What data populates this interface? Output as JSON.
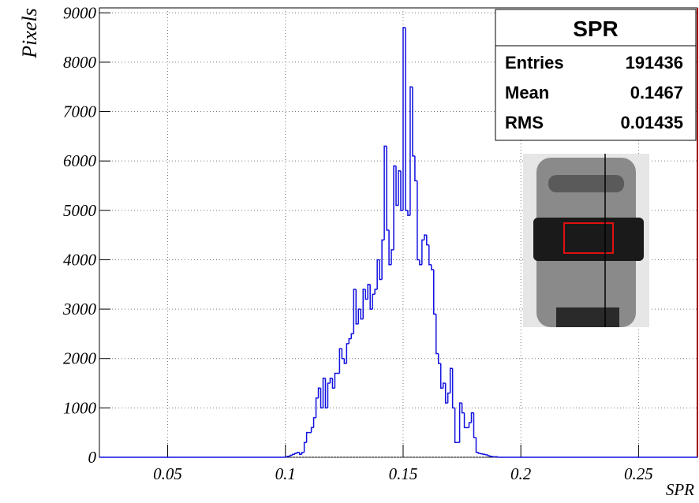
{
  "chart_data": {
    "type": "histogram",
    "x_label": "SPR",
    "y_label": "Pixels",
    "color": "#1010e0",
    "bins": [
      0.1,
      0.101,
      0.102,
      0.103,
      0.104,
      0.105,
      0.106,
      0.107,
      0.108,
      0.109,
      0.11,
      0.111,
      0.112,
      0.113,
      0.114,
      0.115,
      0.116,
      0.117,
      0.118,
      0.119,
      0.12,
      0.121,
      0.122,
      0.123,
      0.124,
      0.125,
      0.126,
      0.127,
      0.128,
      0.129,
      0.13,
      0.131,
      0.132,
      0.133,
      0.134,
      0.135,
      0.136,
      0.137,
      0.138,
      0.139,
      0.14,
      0.141,
      0.142,
      0.143,
      0.144,
      0.145,
      0.146,
      0.147,
      0.148,
      0.149,
      0.15,
      0.151,
      0.152,
      0.153,
      0.154,
      0.155,
      0.156,
      0.157,
      0.158,
      0.159,
      0.16,
      0.161,
      0.162,
      0.163,
      0.164,
      0.165,
      0.166,
      0.167,
      0.168,
      0.169,
      0.17,
      0.171,
      0.172,
      0.173,
      0.174,
      0.175,
      0.176,
      0.177,
      0.178,
      0.179,
      0.18,
      0.181,
      0.182,
      0.183,
      0.184,
      0.185,
      0.186,
      0.187,
      0.188,
      0.189,
      0.19
    ],
    "values": [
      10,
      20,
      40,
      60,
      80,
      100,
      60,
      100,
      300,
      500,
      500,
      600,
      800,
      1200,
      1400,
      1000,
      1600,
      1000,
      1500,
      1600,
      1400,
      1700,
      1700,
      2200,
      2000,
      1900,
      2300,
      2400,
      2500,
      3400,
      2700,
      3000,
      2800,
      3400,
      3200,
      3500,
      3000,
      3300,
      3400,
      4000,
      3600,
      4400,
      6300,
      4600,
      3900,
      4200,
      5900,
      5100,
      5800,
      5000,
      8700,
      5000,
      4900,
      7500,
      6100,
      5600,
      4000,
      3900,
      4400,
      4500,
      4300,
      3900,
      3800,
      2900,
      2100,
      1900,
      1400,
      1500,
      1100,
      1300,
      1800,
      1000,
      300,
      300,
      1100,
      900,
      600,
      600,
      700,
      900,
      400,
      100,
      80,
      70,
      60,
      50,
      30,
      20,
      10,
      10
    ],
    "xlim": [
      0.021,
      0.275
    ],
    "xticks": [
      0.05,
      0.1,
      0.15,
      0.2,
      0.25
    ],
    "ylim": [
      0,
      9100
    ],
    "yticks": [
      0,
      1000,
      2000,
      3000,
      4000,
      5000,
      6000,
      7000,
      8000,
      9000
    ],
    "grid": true,
    "stats": {
      "title": "SPR",
      "rows": [
        [
          "Entries",
          "191436"
        ],
        [
          "Mean",
          "0.1467"
        ],
        [
          "RMS",
          "0.01435"
        ]
      ]
    }
  }
}
